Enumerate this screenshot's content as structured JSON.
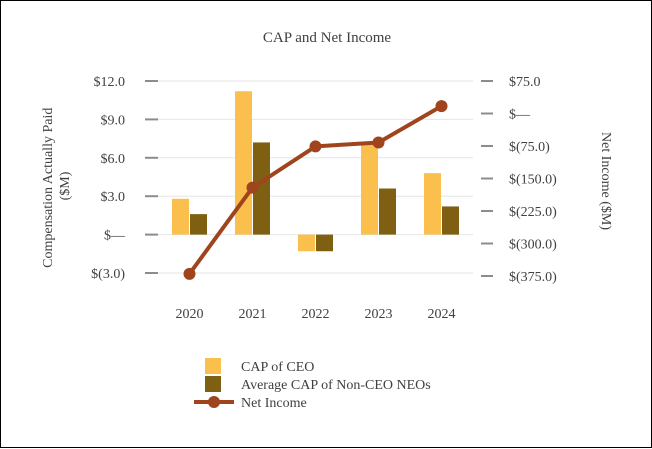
{
  "chart_data": {
    "type": "bar",
    "title": "CAP and Net Income",
    "categories": [
      "2020",
      "2021",
      "2022",
      "2023",
      "2024"
    ],
    "series": [
      {
        "name": "CAP of CEO",
        "type": "bar",
        "axis": "left",
        "color": "#FBBF4E",
        "values": [
          2.8,
          11.2,
          -1.3,
          7.1,
          4.8
        ]
      },
      {
        "name": "Average CAP of Non-CEO NEOs",
        "type": "bar",
        "axis": "left",
        "color": "#7F5F12",
        "values": [
          1.6,
          7.2,
          -1.3,
          3.6,
          2.2
        ]
      },
      {
        "name": "Net Income",
        "type": "line",
        "axis": "right",
        "color": "#A0441E",
        "values": [
          -370,
          -171,
          -76,
          -67,
          17
        ]
      }
    ],
    "left_axis": {
      "label": "Compensation Actually Paid ($M)",
      "label_lines": [
        "Compensation Actually Paid",
        "($M)"
      ],
      "ylim": [
        -3,
        12
      ],
      "ticks": [
        12,
        9,
        6,
        3,
        0,
        -3
      ],
      "tick_labels": [
        "$12.0",
        "$9.0",
        "$6.0",
        "$3.0",
        "$—",
        "$(3.0)"
      ]
    },
    "right_axis": {
      "label": "Net Income ($M)",
      "ylim": [
        -375,
        75
      ],
      "ticks": [
        75,
        0,
        -75,
        -150,
        -225,
        -300,
        -375
      ],
      "tick_labels": [
        "$75.0",
        "$—",
        "$(75.0)",
        "$(150.0)",
        "$(225.0)",
        "$(300.0)",
        "$(375.0)"
      ]
    },
    "grid": true,
    "legend_position": "bottom"
  }
}
